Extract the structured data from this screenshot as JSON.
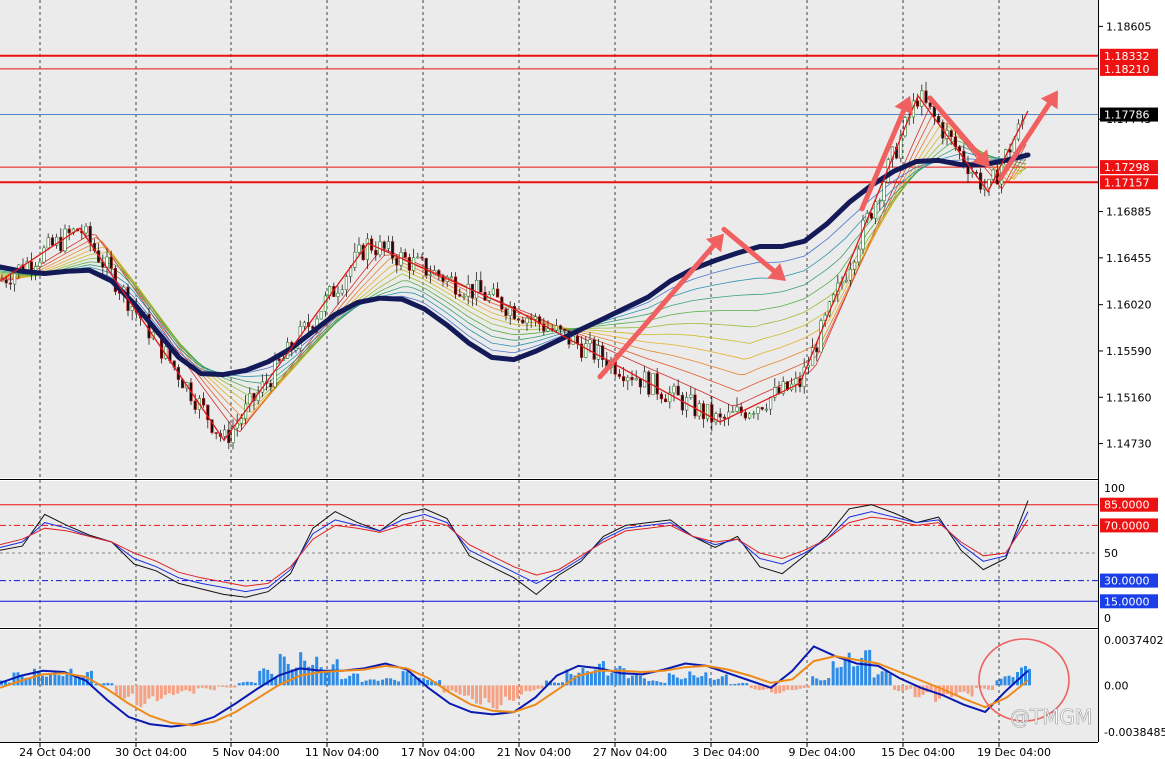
{
  "chart_data": [
    {
      "type": "candlestick",
      "panel": "price",
      "y_ticks": [
        "1.18605",
        "1.17743",
        "1.16885",
        "1.16455",
        "1.16020",
        "1.15590",
        "1.15160",
        "1.14730"
      ],
      "ylim": [
        1.1441,
        1.1885
      ],
      "x_ticks": [
        "24 Oct 04:00",
        "30 Oct 04:00",
        "5 Nov 04:00",
        "11 Nov 04:00",
        "17 Nov 04:00",
        "21 Nov 04:00",
        "27 Nov 04:00",
        "3 Dec 04:00",
        "9 Dec 04:00",
        "15 Dec 04:00",
        "19 Dec 04:00"
      ],
      "horizontal_levels": [
        {
          "label": "1.18332",
          "value": 1.18332,
          "color": "#ee1111"
        },
        {
          "label": "1.18210",
          "value": 1.1821,
          "color": "#ee1111"
        },
        {
          "label": "1.17786",
          "value": 1.17786,
          "color": "#4a86c8",
          "current_price": true
        },
        {
          "label": "1.17298",
          "value": 1.17298,
          "color": "#ee1111"
        },
        {
          "label": "1.17157",
          "value": 1.17157,
          "color": "#ee1111"
        }
      ],
      "moving_average_long": [
        1.1637,
        1.1633,
        1.1631,
        1.1633,
        1.1634,
        1.1624,
        1.1603,
        1.1578,
        1.1553,
        1.1538,
        1.1537,
        1.1541,
        1.1549,
        1.1561,
        1.1577,
        1.1593,
        1.1604,
        1.1608,
        1.1607,
        1.1598,
        1.1583,
        1.1566,
        1.1553,
        1.1551,
        1.1559,
        1.1569,
        1.1579,
        1.1589,
        1.1599,
        1.1609,
        1.1624,
        1.1635,
        1.1643,
        1.165,
        1.1656,
        1.1656,
        1.1661,
        1.1677,
        1.1697,
        1.1713,
        1.1726,
        1.1735,
        1.1736,
        1.1732,
        1.1732,
        1.1736,
        1.1741
      ],
      "swing_lines": [
        [
          1.1624,
          1.1673,
          1.1476,
          1.1659,
          1.1599,
          1.1493,
          1.1529
        ]
      ],
      "arrows": [
        {
          "from": 1.1535,
          "to": 1.1668
        },
        {
          "from": 1.1672,
          "to": 1.1624
        },
        {
          "from": 1.1691,
          "to": 1.1796
        },
        {
          "from": 1.1794,
          "to": 1.1729
        },
        {
          "from": 1.1719,
          "to": 1.1801
        }
      ]
    },
    {
      "type": "line",
      "panel": "oscillator",
      "title": "",
      "y_ticks": [
        "100",
        "50",
        "0"
      ],
      "ylim": [
        0,
        100
      ],
      "levels": [
        {
          "label": "85.0000",
          "value": 85,
          "color": "#ee1111"
        },
        {
          "label": "70.0000",
          "value": 70,
          "color": "#ee1111"
        },
        {
          "label": "30.0000",
          "value": 30,
          "color": "#1111dd"
        },
        {
          "label": "15.0000",
          "value": 15,
          "color": "#1111dd"
        }
      ],
      "series": [
        {
          "values": [
            52,
            55,
            78,
            70,
            63,
            58,
            42,
            37,
            28,
            24,
            20,
            18,
            22,
            35,
            68,
            80,
            72,
            66,
            78,
            82,
            75,
            48,
            40,
            32,
            20,
            34,
            44,
            62,
            70,
            72,
            74,
            62,
            54,
            62,
            40,
            35,
            48,
            62,
            82,
            85,
            79,
            72,
            76,
            52,
            38,
            46,
            88
          ],
          "color": "#111111"
        },
        {
          "values": [
            54,
            58,
            72,
            68,
            62,
            58,
            46,
            40,
            32,
            28,
            25,
            22,
            25,
            38,
            64,
            74,
            70,
            66,
            74,
            78,
            72,
            52,
            44,
            36,
            28,
            36,
            46,
            60,
            68,
            70,
            72,
            62,
            56,
            60,
            46,
            42,
            50,
            60,
            76,
            80,
            76,
            72,
            74,
            56,
            44,
            48,
            80
          ],
          "color": "#1a2ee0"
        },
        {
          "values": [
            56,
            60,
            68,
            66,
            62,
            58,
            50,
            44,
            36,
            32,
            29,
            26,
            28,
            40,
            60,
            70,
            68,
            65,
            70,
            74,
            70,
            56,
            48,
            40,
            34,
            38,
            48,
            58,
            66,
            68,
            70,
            62,
            58,
            60,
            50,
            46,
            52,
            60,
            72,
            76,
            74,
            70,
            72,
            58,
            48,
            50,
            74
          ],
          "color": "#e02020"
        }
      ]
    },
    {
      "type": "bar",
      "panel": "macd",
      "y_ticks": [
        "0.0037402",
        "0.00",
        "-0.0038485"
      ],
      "ylim": [
        -0.0038485,
        0.0037402
      ],
      "histogram": [
        0.0004,
        0.0011,
        0.0014,
        0.0015,
        0.0012,
        0.0002,
        -0.0011,
        -0.0018,
        -0.0013,
        -0.0008,
        -0.0004,
        -0.0002,
        0.0003,
        0.0014,
        0.0026,
        0.003,
        0.0022,
        0.001,
        0.0005,
        0.0006,
        0.0012,
        0.0006,
        -0.0008,
        -0.0016,
        -0.002,
        -0.0013,
        -0.0005,
        0.0004,
        0.0016,
        0.002,
        0.0016,
        0.0009,
        0.0004,
        0.001,
        0.0013,
        0.0009,
        0.0002,
        -0.0004,
        -0.0007,
        -0.0004,
        0.0008,
        0.0028,
        0.003,
        0.0012,
        -0.0005,
        -0.001,
        -0.0014,
        -0.001,
        -0.0004,
        0.0008,
        0.0016
      ],
      "series": [
        {
          "values": [
            0.0002,
            0.0008,
            0.0012,
            0.0011,
            0.0004,
            -0.0012,
            -0.0026,
            -0.0032,
            -0.0034,
            -0.0032,
            -0.0026,
            -0.0015,
            -0.0003,
            0.0008,
            0.0014,
            0.0012,
            0.0012,
            0.0014,
            0.0018,
            0.0013,
            -0.0002,
            -0.0015,
            -0.0022,
            -0.0024,
            -0.0022,
            -0.001,
            0.0008,
            0.0016,
            0.0014,
            0.001,
            0.0009,
            0.0013,
            0.0018,
            0.0016,
            0.001,
            0.0004,
            -0.0002,
            0.0012,
            0.0032,
            0.0024,
            0.0018,
            0.0016,
            0.0006,
            -0.0002,
            -0.0008,
            -0.0016,
            -0.0022,
            -0.0004,
            0.0012
          ],
          "color": "#0a1ab0"
        },
        {
          "values": [
            -0.0002,
            0.0004,
            0.0009,
            0.001,
            0.0007,
            -0.0003,
            -0.0015,
            -0.0025,
            -0.0031,
            -0.0033,
            -0.003,
            -0.0022,
            -0.0011,
            0.0,
            0.0008,
            0.0011,
            0.0012,
            0.0013,
            0.0016,
            0.0014,
            0.0006,
            -0.0006,
            -0.0016,
            -0.0021,
            -0.0022,
            -0.0016,
            -0.0004,
            0.0008,
            0.0012,
            0.0012,
            0.0011,
            0.0012,
            0.0015,
            0.0016,
            0.0013,
            0.0008,
            0.0002,
            0.0005,
            0.002,
            0.0024,
            0.0021,
            0.0018,
            0.0011,
            0.0004,
            -0.0003,
            -0.0011,
            -0.0018,
            -0.001,
            0.0004
          ],
          "color": "#ee8a1a"
        }
      ]
    }
  ],
  "watermark": "@TMGM",
  "colors": {
    "level_red": "#ee1111",
    "level_blue": "#1111dd",
    "ma": "#141a58",
    "arrow": "#f06060",
    "hist_up": "#2f8ce6",
    "hist_down": "#f5a183"
  }
}
